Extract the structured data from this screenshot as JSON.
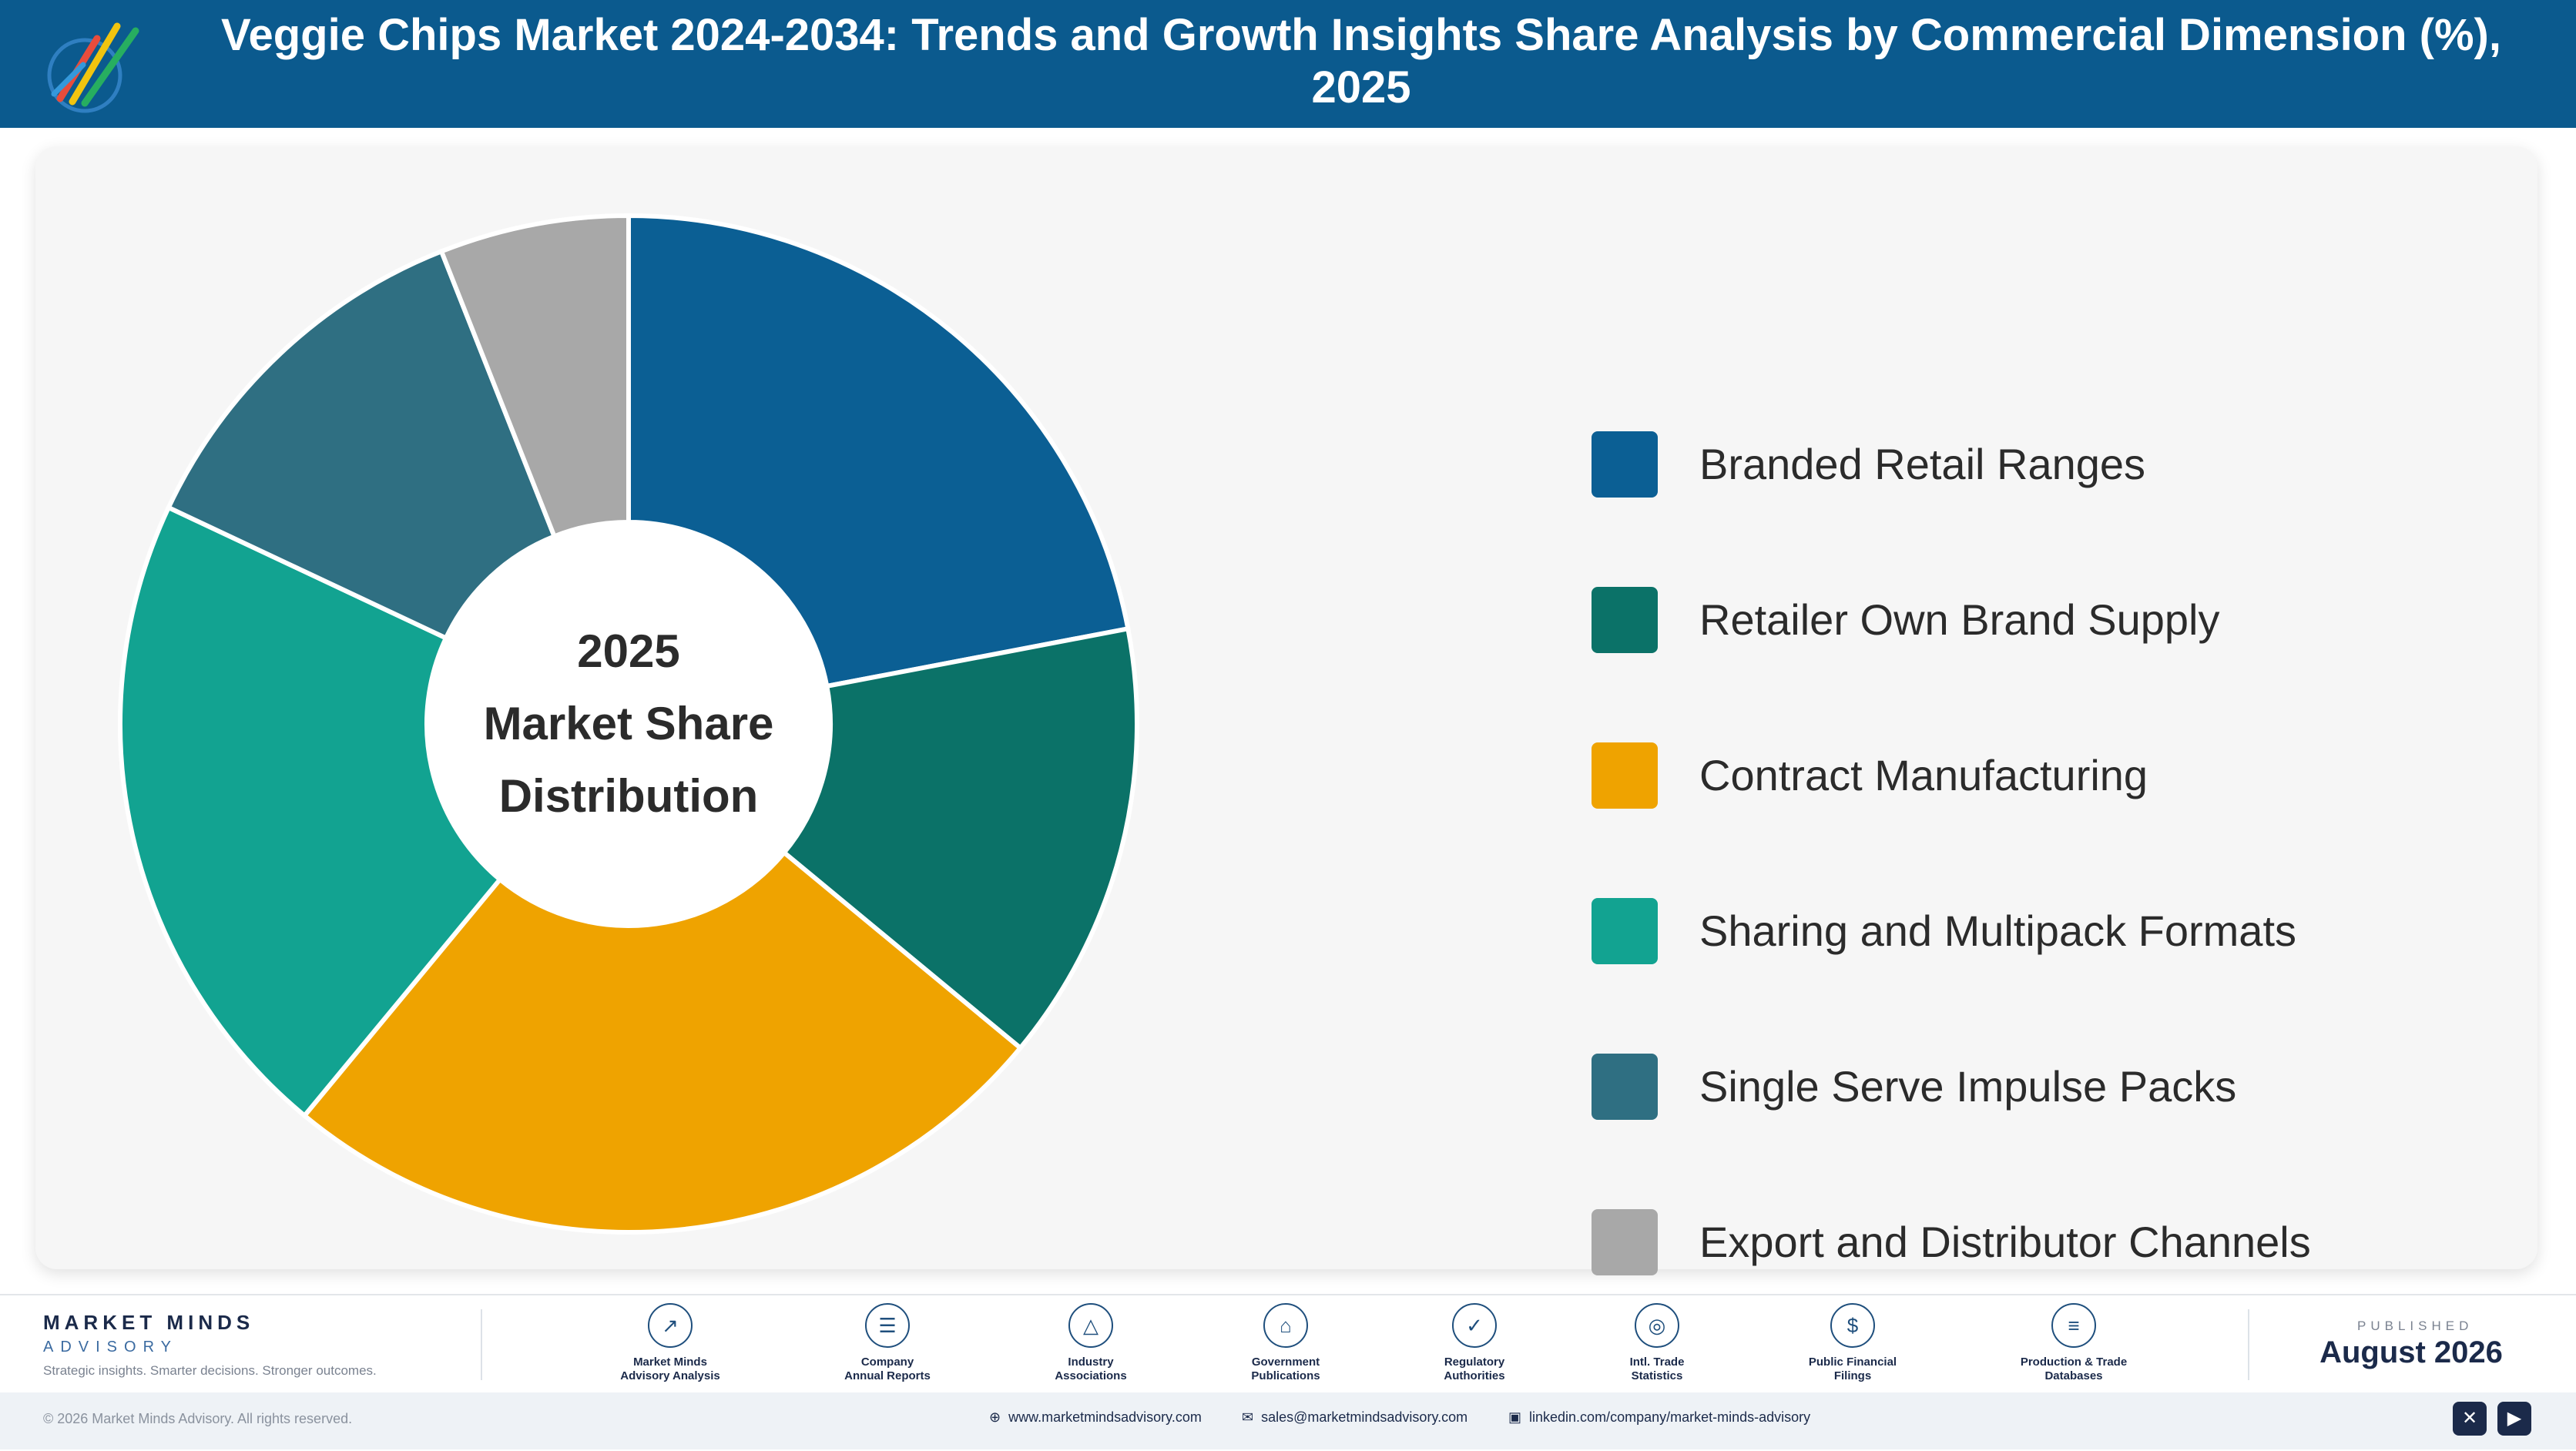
{
  "header": {
    "title": "Veggie Chips Market 2024-2034: Trends and Growth Insights Share Analysis by Commercial Dimension (%), 2025",
    "logo_icon": "pencil-chart-logo-icon"
  },
  "chart_data": {
    "type": "pie",
    "donut": true,
    "center_label": [
      "2025",
      "Market Share",
      "Distribution"
    ],
    "legend_position": "right",
    "categories": [
      "Branded Retail Ranges",
      "Retailer Own Brand Supply",
      "Contract Manufacturing",
      "Sharing and Multipack Formats",
      "Single Serve Impulse Packs",
      "Export and Distributor Channels"
    ],
    "values": [
      22,
      14,
      25,
      21,
      12,
      6
    ],
    "colors": [
      "#0b5f94",
      "#0b7268",
      "#efa300",
      "#12a391",
      "#2f6f82",
      "#a8a8a8"
    ]
  },
  "footer": {
    "brand_name": "MARKET MINDS",
    "brand_sub": "ADVISORY",
    "tagline": "Strategic insights. Smarter decisions. Stronger outcomes.",
    "sources": [
      {
        "label": "Market Minds\nAdvisory Analysis",
        "icon": "trend-line-icon"
      },
      {
        "label": "Company\nAnnual Reports",
        "icon": "document-icon"
      },
      {
        "label": "Industry\nAssociations",
        "icon": "network-icon"
      },
      {
        "label": "Government\nPublications",
        "icon": "government-building-icon"
      },
      {
        "label": "Regulatory\nAuthorities",
        "icon": "shield-check-icon"
      },
      {
        "label": "Intl. Trade\nStatistics",
        "icon": "globe-icon"
      },
      {
        "label": "Public Financial\nFilings",
        "icon": "dollar-coin-icon"
      },
      {
        "label": "Production & Trade\nDatabases",
        "icon": "database-icon"
      }
    ],
    "published_label": "PUBLISHED",
    "published_date": "August 2026",
    "copyright": "© 2026 Market Minds Advisory. All rights reserved.",
    "website": "www.marketmindsadvisory.com",
    "email": "sales@marketmindsadvisory.com",
    "linkedin": "linkedin.com/company/market-minds-advisory",
    "social": [
      {
        "icon": "x-icon"
      },
      {
        "icon": "youtube-icon"
      }
    ]
  }
}
